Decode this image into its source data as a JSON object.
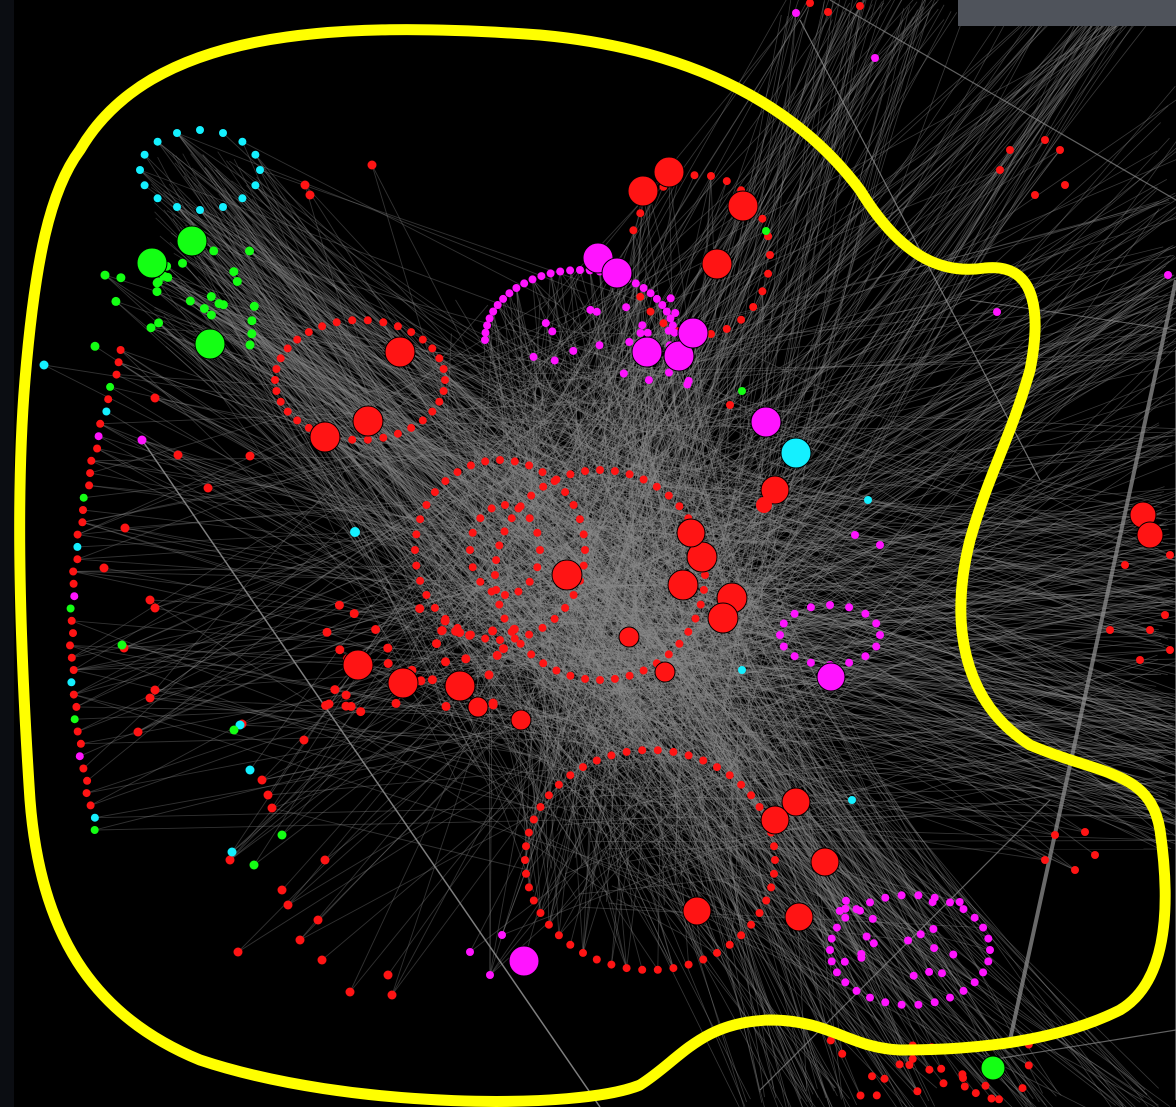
{
  "graph": {
    "palette": {
      "edge": "#8c8c8c",
      "red": "#ff1414",
      "magenta": "#ff14ff",
      "green": "#14ff14",
      "cyan": "#14f0ff",
      "highlight": "#ffff00",
      "background": "#000000",
      "corner_panel": "#4f535b"
    },
    "node_groups": [
      "red",
      "magenta",
      "green",
      "cyan"
    ],
    "highlight_shape": "closed-outline"
  }
}
